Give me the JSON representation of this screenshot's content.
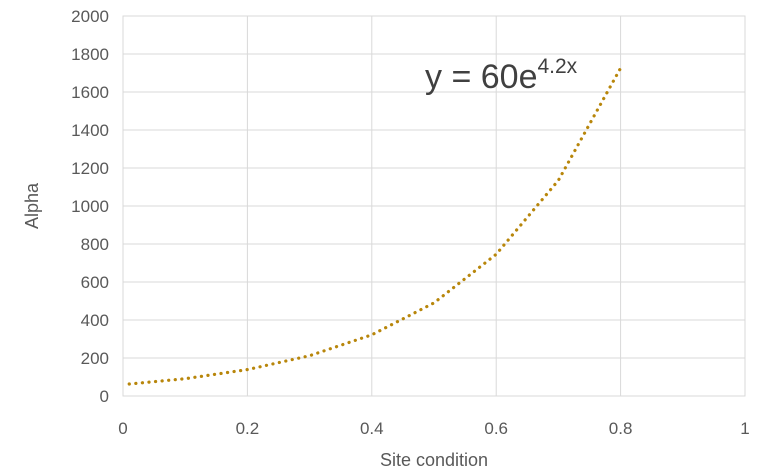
{
  "chart_data": {
    "type": "line",
    "title": "",
    "xlabel": "Site condition",
    "ylabel": "Alpha",
    "xlim": [
      0,
      1
    ],
    "ylim": [
      0,
      2000
    ],
    "x_ticks": [
      0,
      0.2,
      0.4,
      0.6,
      0.8,
      1
    ],
    "x_tick_labels": [
      "0",
      "0.2",
      "0.4",
      "0.6",
      "0.8",
      "1"
    ],
    "y_ticks": [
      0,
      200,
      400,
      600,
      800,
      1000,
      1200,
      1400,
      1600,
      1800,
      2000
    ],
    "y_tick_labels": [
      "0",
      "200",
      "400",
      "600",
      "800",
      "1000",
      "1200",
      "1400",
      "1600",
      "1800",
      "2000"
    ],
    "grid": true,
    "legend": "none",
    "line_style": "dotted",
    "series": [
      {
        "color": "#B8860B",
        "x": [
          0.01,
          0.1,
          0.2,
          0.3,
          0.4,
          0.5,
          0.6,
          0.7,
          0.8
        ],
        "y": [
          63,
          91,
          139,
          212,
          322,
          490,
          746,
          1135,
          1726
        ]
      }
    ],
    "annotations": [
      {
        "base": "y = 60e",
        "superscript": "4.2x"
      }
    ]
  }
}
